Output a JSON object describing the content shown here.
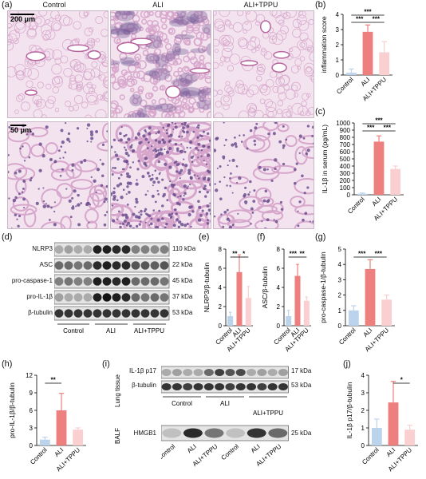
{
  "panel_letters": {
    "a": "(a)",
    "b": "(b)",
    "c": "(c)",
    "d": "(d)",
    "e": "(e)",
    "f": "(f)",
    "g": "(g)",
    "h": "(h)",
    "i": "(i)",
    "j": "(j)"
  },
  "histology": {
    "columns": [
      "Control",
      "ALI",
      "ALI+TPPU"
    ],
    "scale_top": "200 μm",
    "scale_bottom": "50 μm"
  },
  "colors": {
    "control": "#bcd3ec",
    "ali": "#ee7f7f",
    "tppu": "#f9cfcf",
    "he_background": "#f3e3ee",
    "he_tissue": "#d7a6cc",
    "he_nuclei": "#6b4f8f"
  },
  "blot_d": {
    "proteins": [
      {
        "name": "NLRP3",
        "kda": "110 kDa"
      },
      {
        "name": "ASC",
        "kda": "22 kDa"
      },
      {
        "name": "pro-caspase-1",
        "kda": "45 kDa"
      },
      {
        "name": "pro-IL-1β",
        "kda": "37 kDa"
      },
      {
        "name": "β-tubulin",
        "kda": "53 kDa"
      }
    ],
    "groups": [
      "Control",
      "ALI",
      "ALI+TPPU"
    ]
  },
  "blot_i": {
    "lung_tissue_label": "Lung tissue",
    "balf_label": "BALF",
    "lung_proteins": [
      {
        "name": "IL-1β p17",
        "kda": "17 kDa"
      },
      {
        "name": "β-tubulin",
        "kda": "53 kDa"
      }
    ],
    "balf_proteins": [
      {
        "name": "HMGB1",
        "kda": "25 kDa"
      }
    ],
    "lung_groups": [
      "Control",
      "ALI",
      "ALI+TPPU"
    ],
    "balf_lanes": [
      "Control",
      "ALI",
      "ALI+TPPU",
      "Control",
      "ALI",
      "ALI+TPPU"
    ]
  },
  "chart_data": [
    {
      "id": "b",
      "type": "bar",
      "categories": [
        "Control",
        "ALI",
        "ALI+TPPU"
      ],
      "values": [
        0.15,
        2.85,
        1.5
      ],
      "errors": [
        0.25,
        0.45,
        0.7
      ],
      "ylabel": "inflammation score",
      "ylim": [
        0,
        4
      ],
      "yticks": [
        0,
        1,
        2,
        3,
        4
      ],
      "significance": [
        {
          "from": 0,
          "to": 1,
          "label": "***",
          "level": 1
        },
        {
          "from": 1,
          "to": 2,
          "label": "***",
          "level": 1
        },
        {
          "from": 0,
          "to": 2,
          "label": "***",
          "level": 2
        }
      ]
    },
    {
      "id": "c",
      "type": "bar",
      "categories": [
        "Control",
        "ALI",
        "ALI+TPPU"
      ],
      "values": [
        15,
        740,
        360
      ],
      "errors": [
        10,
        80,
        40
      ],
      "ylabel": "IL-1β in serum (pg/mL)",
      "ylim": [
        0,
        1000
      ],
      "yticks": [
        0,
        100,
        200,
        300,
        400,
        500,
        600,
        700,
        800,
        900,
        1000
      ],
      "significance": [
        {
          "from": 0,
          "to": 1,
          "label": "***",
          "level": 1
        },
        {
          "from": 1,
          "to": 2,
          "label": "***",
          "level": 1
        },
        {
          "from": 0,
          "to": 2,
          "label": "***",
          "level": 2
        }
      ]
    },
    {
      "id": "e",
      "type": "bar",
      "categories": [
        "Control",
        "ALI",
        "ALI+TPPU"
      ],
      "values": [
        1.0,
        5.6,
        2.9
      ],
      "errors": [
        0.4,
        1.8,
        1.2
      ],
      "ylabel": "NLRP3/β-tubulin",
      "ylim": [
        0,
        8
      ],
      "yticks": [
        0,
        2,
        4,
        6,
        8
      ],
      "significance": [
        {
          "from": 0,
          "to": 1,
          "label": "**",
          "level": 1
        },
        {
          "from": 1,
          "to": 2,
          "label": "*",
          "level": 1
        }
      ]
    },
    {
      "id": "f",
      "type": "bar",
      "categories": [
        "Control",
        "ALI",
        "ALI+TPPU"
      ],
      "values": [
        1.0,
        5.2,
        2.6
      ],
      "errors": [
        0.6,
        1.2,
        0.4
      ],
      "ylabel": "ASC/β-tubulin",
      "ylim": [
        0,
        8
      ],
      "yticks": [
        0,
        2,
        4,
        6,
        8
      ],
      "significance": [
        {
          "from": 0,
          "to": 1,
          "label": "***",
          "level": 1
        },
        {
          "from": 1,
          "to": 2,
          "label": "**",
          "level": 1
        }
      ]
    },
    {
      "id": "g",
      "type": "bar",
      "categories": [
        "Control",
        "ALI",
        "ALI+TPPU"
      ],
      "values": [
        1.0,
        3.7,
        1.7
      ],
      "errors": [
        0.3,
        0.6,
        0.3
      ],
      "ylabel": "pro-caspase-1/β-tubulin",
      "ylim": [
        0,
        5
      ],
      "yticks": [
        0,
        1,
        2,
        3,
        4,
        5
      ],
      "significance": [
        {
          "from": 0,
          "to": 1,
          "label": "***",
          "level": 1
        },
        {
          "from": 1,
          "to": 2,
          "label": "***",
          "level": 1
        }
      ]
    },
    {
      "id": "h",
      "type": "bar",
      "categories": [
        "Control",
        "ALI",
        "ALI+TPPU"
      ],
      "values": [
        1.0,
        6.0,
        2.7
      ],
      "errors": [
        0.4,
        2.9,
        0.3
      ],
      "ylabel": "pro-IL-1β/β-tubulin",
      "ylim": [
        0,
        12
      ],
      "yticks": [
        0,
        3,
        6,
        9,
        12
      ],
      "significance": [
        {
          "from": 0,
          "to": 1,
          "label": "**",
          "level": 1
        }
      ]
    },
    {
      "id": "j",
      "type": "bar",
      "categories": [
        "Control",
        "ALI",
        "ALI+TPPU"
      ],
      "values": [
        1.0,
        2.45,
        0.9
      ],
      "errors": [
        0.5,
        1.2,
        0.25
      ],
      "ylabel": "IL-1β p17/β-tubulin",
      "ylim": [
        0,
        4
      ],
      "yticks": [
        0,
        1,
        2,
        3,
        4
      ],
      "significance": [
        {
          "from": 1,
          "to": 2,
          "label": "*",
          "level": 1
        }
      ]
    }
  ]
}
